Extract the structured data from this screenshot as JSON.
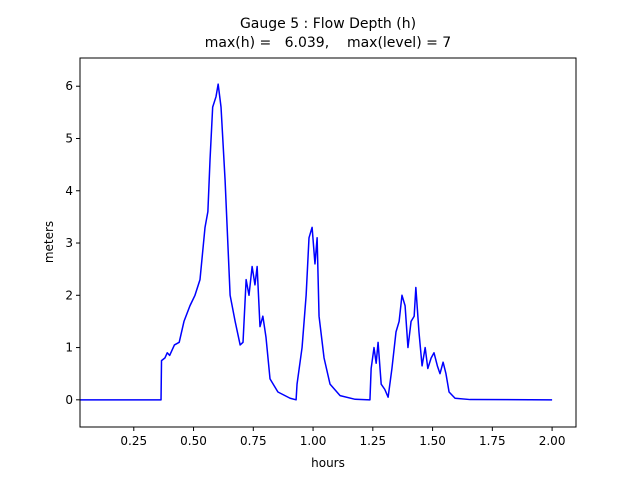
{
  "chart_data": {
    "type": "line",
    "title": [
      "Gauge 5 : Flow Depth (h)",
      "max(h) =   6.039,    max(level) = 7"
    ],
    "x_label": "hours",
    "y_label": "meters",
    "xlim": [
      0.025,
      2.1
    ],
    "ylim": [
      -0.52,
      6.54
    ],
    "xticks": [
      0.25,
      {
        "value": 0.5,
        "label": "0.50"
      },
      0.75,
      {
        "value": 1.0,
        "label": "1.00"
      },
      1.25,
      {
        "value": 1.5,
        "label": "1.50"
      },
      1.75,
      {
        "value": 2.0,
        "label": "2.00"
      }
    ],
    "yticks": [
      0,
      1,
      2,
      3,
      4,
      5,
      6
    ],
    "x": [
      0.025,
      0.364,
      0.366,
      0.38,
      0.39,
      0.4,
      0.42,
      0.44,
      0.46,
      0.485,
      0.506,
      0.527,
      0.548,
      0.56,
      0.569,
      0.58,
      0.594,
      0.603,
      0.615,
      0.632,
      0.653,
      0.674,
      0.695,
      0.707,
      0.72,
      0.732,
      0.745,
      0.757,
      0.766,
      0.778,
      0.79,
      0.803,
      0.82,
      0.853,
      0.904,
      0.929,
      0.933,
      0.954,
      0.971,
      0.983,
      0.996,
      1.008,
      1.017,
      1.025,
      1.046,
      1.071,
      1.113,
      1.176,
      1.238,
      1.243,
      1.255,
      1.264,
      1.272,
      1.285,
      1.3,
      1.314,
      1.33,
      1.347,
      1.36,
      1.372,
      1.385,
      1.397,
      1.41,
      1.423,
      1.43,
      1.443,
      1.456,
      1.469,
      1.48,
      1.494,
      1.506,
      1.52,
      1.531,
      1.544,
      1.556,
      1.569,
      1.594,
      1.657,
      2.0
    ],
    "series": [
      {
        "name": "h",
        "color": "#0000ff",
        "values": [
          0,
          0,
          0.75,
          0.8,
          0.9,
          0.85,
          1.05,
          1.1,
          1.5,
          1.8,
          2.0,
          2.3,
          3.3,
          3.6,
          4.6,
          5.6,
          5.8,
          6.04,
          5.6,
          4.2,
          2.0,
          1.5,
          1.05,
          1.1,
          2.3,
          2.0,
          2.55,
          2.2,
          2.55,
          1.4,
          1.6,
          1.2,
          0.4,
          0.15,
          0.03,
          0.0,
          0.3,
          1.0,
          2.0,
          3.1,
          3.3,
          2.6,
          3.1,
          1.6,
          0.8,
          0.3,
          0.08,
          0.01,
          0,
          0.6,
          1.0,
          0.7,
          1.1,
          0.3,
          0.2,
          0.05,
          0.6,
          1.3,
          1.5,
          2.0,
          1.8,
          1.0,
          1.5,
          1.6,
          2.15,
          1.3,
          0.65,
          1.0,
          0.6,
          0.8,
          0.9,
          0.65,
          0.5,
          0.72,
          0.5,
          0.15,
          0.03,
          0.005,
          0
        ]
      }
    ]
  }
}
